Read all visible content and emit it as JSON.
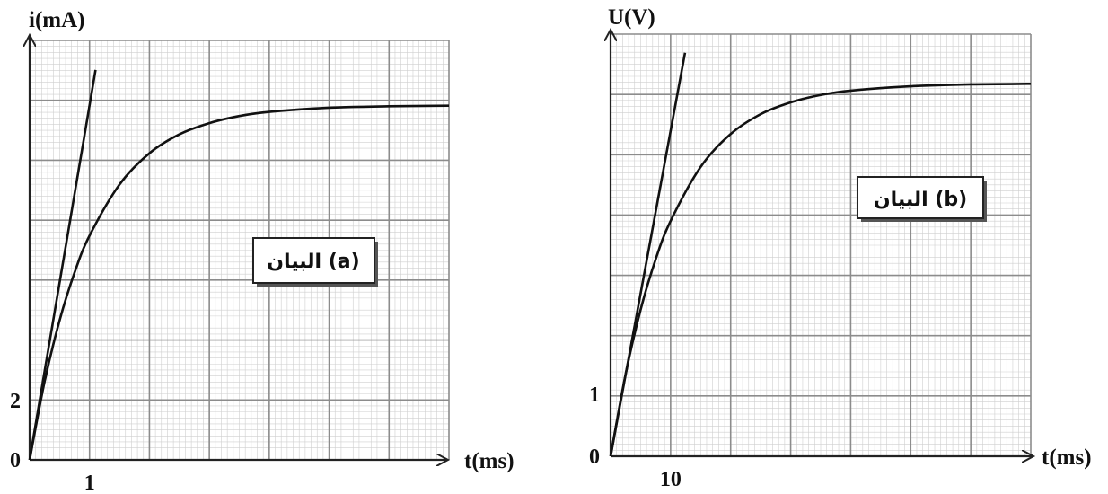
{
  "chart_data": [
    {
      "type": "line",
      "title": "",
      "xlabel": "t(ms)",
      "ylabel": "i(mA)",
      "legend_label": "البيان (a)",
      "x_tick_labels": [
        {
          "x": 1,
          "label": "1"
        }
      ],
      "y_tick_labels": [
        {
          "y": 0,
          "label": "0"
        },
        {
          "y": 2,
          "label": "2"
        }
      ],
      "xlim": [
        0,
        7
      ],
      "ylim": [
        0,
        14.2
      ],
      "grid": true,
      "legend_position": "center-right",
      "series": [
        {
          "kind": "curve",
          "x": [
            0,
            0.25,
            0.5,
            0.75,
            1,
            1.5,
            2,
            2.5,
            3,
            3.5,
            4,
            5,
            6,
            7
          ],
          "values": [
            0,
            2.65,
            4.72,
            6.34,
            7.59,
            9.32,
            10.38,
            11.02,
            11.4,
            11.64,
            11.78,
            11.92,
            11.97,
            11.99
          ]
        },
        {
          "kind": "tangent",
          "x": [
            0,
            1.1
          ],
          "values": [
            0,
            13.2
          ]
        }
      ],
      "colors": {
        "curve": "#111111",
        "grid_major": "#8c8c8c",
        "grid_minor": "#cfcfcf"
      }
    },
    {
      "type": "line",
      "title": "",
      "xlabel": "t(ms)",
      "ylabel": "U(V)",
      "legend_label": "البيان (b)",
      "x_tick_labels": [
        {
          "x": 10,
          "label": "10"
        }
      ],
      "y_tick_labels": [
        {
          "y": 0,
          "label": "0"
        },
        {
          "y": 1,
          "label": "1"
        }
      ],
      "xlim": [
        0,
        70
      ],
      "ylim": [
        0,
        6.8
      ],
      "grid": true,
      "legend_position": "center-right",
      "series": [
        {
          "kind": "curve",
          "x": [
            0,
            2.5,
            5,
            7.5,
            10,
            15,
            20,
            25,
            30,
            35,
            40,
            50,
            60,
            70
          ],
          "values": [
            0,
            1.32,
            2.36,
            3.17,
            3.79,
            4.66,
            5.19,
            5.51,
            5.7,
            5.82,
            5.89,
            5.96,
            5.99,
            6.0
          ]
        },
        {
          "kind": "tangent",
          "x": [
            0,
            12.4
          ],
          "values": [
            0,
            6.5
          ]
        }
      ],
      "colors": {
        "curve": "#111111",
        "grid_major": "#8c8c8c",
        "grid_minor": "#cfcfcf"
      }
    }
  ]
}
